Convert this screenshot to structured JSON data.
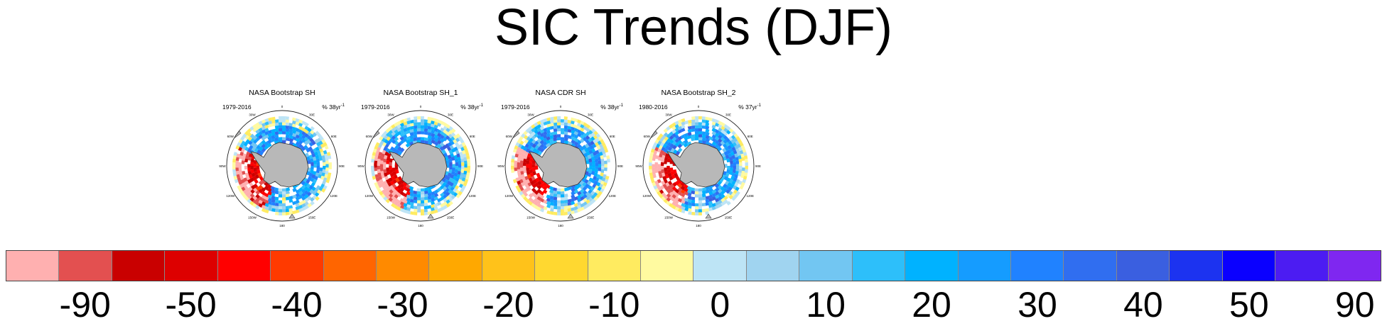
{
  "title": "SIC Trends (DJF)",
  "panels": [
    {
      "title": "NASA Bootstrap SH",
      "period": "1979-2016",
      "pct": "% 38yr"
    },
    {
      "title": "NASA Bootstrap SH_1",
      "period": "1979-2016",
      "pct": "% 38yr"
    },
    {
      "title": "NASA CDR SH",
      "period": "1979-2016",
      "pct": "% 38yr"
    },
    {
      "title": "NASA Bootstrap SH_2",
      "period": "1980-2016",
      "pct": "% 37yr"
    }
  ],
  "pct_exponent": "-1",
  "map_labels": {
    "lon_top": "0",
    "lon_30w": "30W",
    "lon_30e": "30E",
    "lon_60w": "60W",
    "lon_60e": "60E",
    "lon_90w": "90W",
    "lon_90e": "90E",
    "lon_120w": "120W",
    "lon_120e": "120E",
    "lon_150w": "150W",
    "lon_150e": "150E",
    "lon_180": "180"
  },
  "colorbar": {
    "labels": [
      "-90",
      "-50",
      "-40",
      "-30",
      "-20",
      "-10",
      "0",
      "10",
      "20",
      "30",
      "40",
      "50",
      "90"
    ],
    "label_box_positions": [
      1,
      3,
      5,
      7,
      9,
      11,
      13,
      15,
      17,
      19,
      21,
      23,
      25
    ],
    "colors": [
      "#FFB0B0",
      "#E35050",
      "#C90000",
      "#DD0000",
      "#FF0000",
      "#FF3A00",
      "#FF6500",
      "#FF8A00",
      "#FFA800",
      "#FFC21A",
      "#FFD830",
      "#FFEB60",
      "#FFFAA0",
      "#BDE4F5",
      "#A0D4F0",
      "#72C6F2",
      "#2DBFFA",
      "#00B2FF",
      "#159CFF",
      "#2082FF",
      "#306EF0",
      "#3A5FE0",
      "#1C33F0",
      "#0A00FF",
      "#4C1CF2",
      "#7F27F0"
    ]
  },
  "chart_data": {
    "type": "heatmap",
    "title": "SIC Trends (DJF)",
    "subplots": [
      {
        "title": "NASA Bootstrap SH",
        "period": "1979-2016",
        "units": "% 38yr-1"
      },
      {
        "title": "NASA Bootstrap SH_1",
        "period": "1979-2016",
        "units": "% 38yr-1"
      },
      {
        "title": "NASA CDR SH",
        "period": "1979-2016",
        "units": "% 38yr-1"
      },
      {
        "title": "NASA Bootstrap SH_2",
        "period": "1980-2016",
        "units": "% 37yr-1"
      }
    ],
    "colorbar_ticks": [
      -90,
      -50,
      -40,
      -30,
      -20,
      -10,
      0,
      10,
      20,
      30,
      40,
      50,
      90
    ]
  }
}
